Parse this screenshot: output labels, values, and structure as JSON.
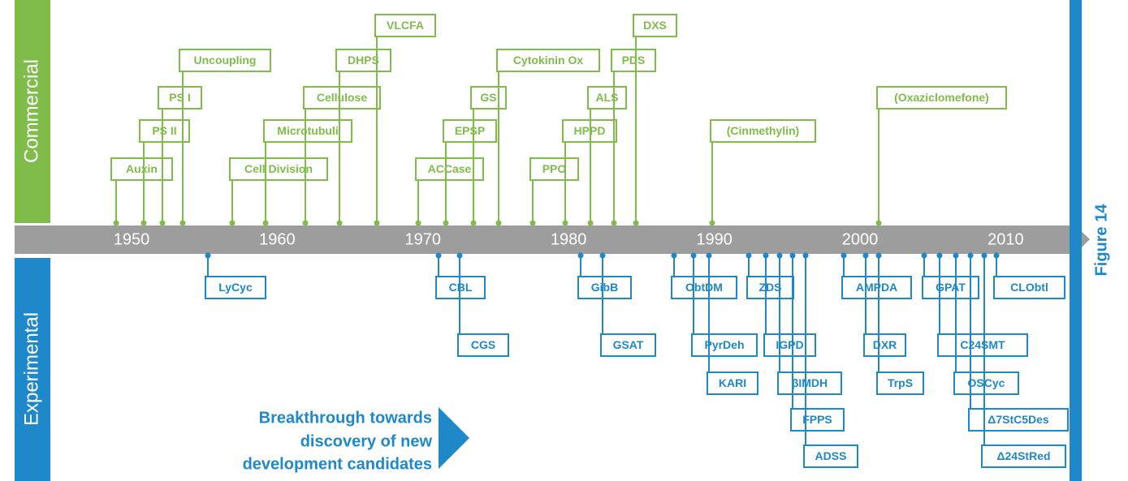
{
  "side_labels": {
    "commercial": "Commercial",
    "experimental": "Experimental"
  },
  "figure_label": "Figure 14",
  "axis_years": [
    "1950",
    "1960",
    "1970",
    "1980",
    "1990",
    "2000",
    "2010"
  ],
  "commercial": [
    "Auxin",
    "PS II",
    "PS I",
    "Uncoupling",
    "Cell Division",
    "Microtubuli",
    "Cellulose",
    "DHPS",
    "VLCFA",
    "ACCase",
    "EPSP",
    "GS",
    "Cytokinin Ox",
    "PPO",
    "HPPD",
    "ALS",
    "PDS",
    "DXS",
    "(Cinmethylin)",
    "(Oxaziclomefone)"
  ],
  "experimental": [
    "LyCyc",
    "CBL",
    "CGS",
    "GibB",
    "GSAT",
    "ObtDM",
    "PyrDeh",
    "KARI",
    "ZDS",
    "IGPD",
    "βIMDH",
    "FPPS",
    "ADSS",
    "AMPDA",
    "DXR",
    "TrpS",
    "GPAT",
    "C24SMT",
    "OSCyc",
    "Δ7StC5Des",
    "Δ24StRed",
    "CLObtl"
  ],
  "callout": [
    "Breakthrough towards",
    "discovery of new",
    "development candidates"
  ]
}
